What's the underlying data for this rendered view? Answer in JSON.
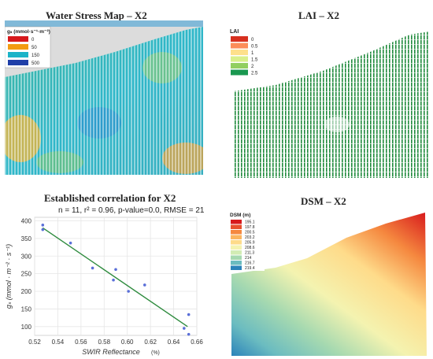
{
  "panels": {
    "water_stress": {
      "title": "Water Stress Map – X2",
      "legend_title": "gₛ (mmol·s⁻¹·m⁻²)",
      "legend": [
        {
          "label": "0",
          "color": "#d7191c"
        },
        {
          "label": "50",
          "color": "#f39c12"
        },
        {
          "label": "150",
          "color": "#1bb3c8"
        },
        {
          "label": "500",
          "color": "#1f3fa8"
        }
      ]
    },
    "lai": {
      "title": "LAI – X2",
      "legend_title": "LAI",
      "legend": [
        {
          "label": "0",
          "color": "#d7301f"
        },
        {
          "label": "0.5",
          "color": "#fc8d59"
        },
        {
          "label": "1",
          "color": "#fee08b"
        },
        {
          "label": "1.5",
          "color": "#d9ef8b"
        },
        {
          "label": "2",
          "color": "#91cf60"
        },
        {
          "label": "2.5",
          "color": "#1a9850"
        }
      ]
    },
    "correlation": {
      "title": "Established correlation for X2",
      "stats": "n = 11, r² = 0.96, p-value=0.0, RMSE = 21"
    },
    "dsm": {
      "title": "DSM – X2",
      "legend_title": "DSM (m)",
      "legend": [
        {
          "label": "195.1",
          "color": "#d7191c"
        },
        {
          "label": "197.8",
          "color": "#e8502d"
        },
        {
          "label": "200.5",
          "color": "#f5883f"
        },
        {
          "label": "203.2",
          "color": "#fbb55f"
        },
        {
          "label": "205.9",
          "color": "#fedb8a"
        },
        {
          "label": "208.6",
          "color": "#f4f3b0"
        },
        {
          "label": "211.3",
          "color": "#d2ecb4"
        },
        {
          "label": "214",
          "color": "#a6d9b0"
        },
        {
          "label": "216.7",
          "color": "#6bbcc0"
        },
        {
          "label": "219.4",
          "color": "#2b83ba"
        }
      ]
    }
  },
  "chart_data": {
    "type": "scatter",
    "title": "Established correlation for X2",
    "subtitle": "n = 11, r² = 0.96, p-value=0.0, RMSE = 21",
    "xlabel": "SWIR Reflectance",
    "xlabel_unit": "(%)",
    "ylabel": "gₛ (mmol · m⁻² · s⁻¹)",
    "xlim": [
      0.52,
      0.66
    ],
    "ylim": [
      75,
      410
    ],
    "xticks": [
      "0.52",
      "0.54",
      "0.56",
      "0.58",
      "0.60",
      "0.62",
      "0.64",
      "0.66"
    ],
    "yticks": [
      "100",
      "150",
      "200",
      "250",
      "300",
      "350",
      "400"
    ],
    "points": [
      {
        "x": 0.527,
        "y": 388
      },
      {
        "x": 0.527,
        "y": 375
      },
      {
        "x": 0.551,
        "y": 337
      },
      {
        "x": 0.57,
        "y": 266
      },
      {
        "x": 0.588,
        "y": 232
      },
      {
        "x": 0.59,
        "y": 262
      },
      {
        "x": 0.601,
        "y": 200
      },
      {
        "x": 0.615,
        "y": 218
      },
      {
        "x": 0.649,
        "y": 95
      },
      {
        "x": 0.653,
        "y": 134
      },
      {
        "x": 0.653,
        "y": 78
      }
    ],
    "fit_line": {
      "x": [
        0.527,
        0.652
      ],
      "y": [
        380,
        100
      ]
    },
    "grid": true,
    "point_color": "#5a6fd8",
    "line_color": "#2e8b3e"
  }
}
